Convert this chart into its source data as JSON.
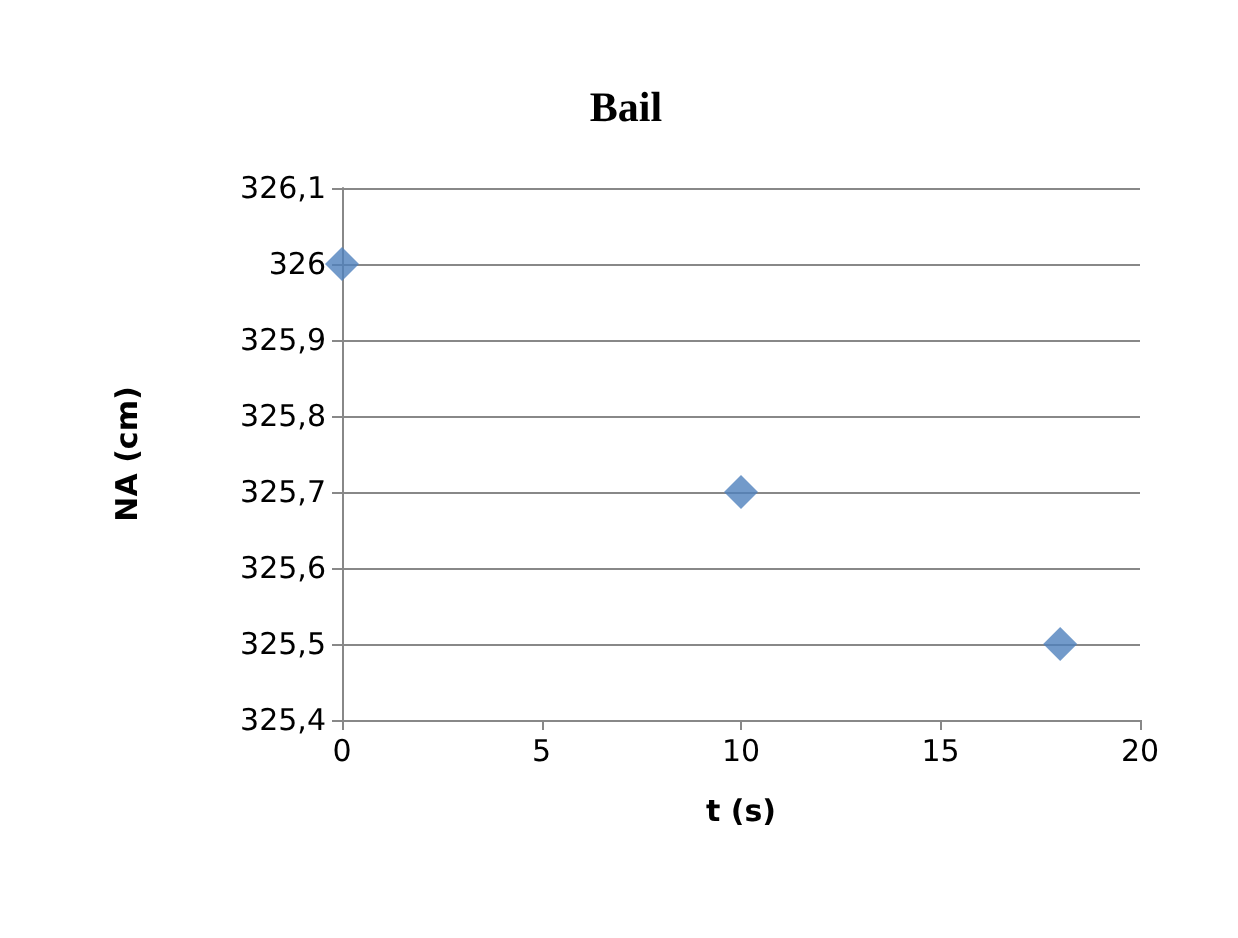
{
  "chart_data": {
    "type": "scatter",
    "title": "Bail",
    "xlabel": "t (s)",
    "ylabel": "NA (cm)",
    "x": [
      0,
      10,
      18
    ],
    "series": [
      {
        "color": "#4f81bd",
        "values": [
          326,
          325.7,
          325.5
        ]
      }
    ],
    "marker": "diamond",
    "grid": "y",
    "xlim": [
      0,
      20
    ],
    "xticks": [
      0,
      5,
      10,
      15,
      20
    ],
    "ylim": [
      325.4,
      326.1
    ],
    "yticks": [
      {
        "value": 325.4,
        "label": "325,4"
      },
      {
        "value": 325.5,
        "label": "325,5"
      },
      {
        "value": 325.6,
        "label": "325,6"
      },
      {
        "value": 325.7,
        "label": "325,7"
      },
      {
        "value": 325.8,
        "label": "325,8"
      },
      {
        "value": 325.9,
        "label": "325,9"
      },
      {
        "value": 326,
        "label": "326"
      },
      {
        "value": 326.1,
        "label": "326,1"
      }
    ]
  }
}
